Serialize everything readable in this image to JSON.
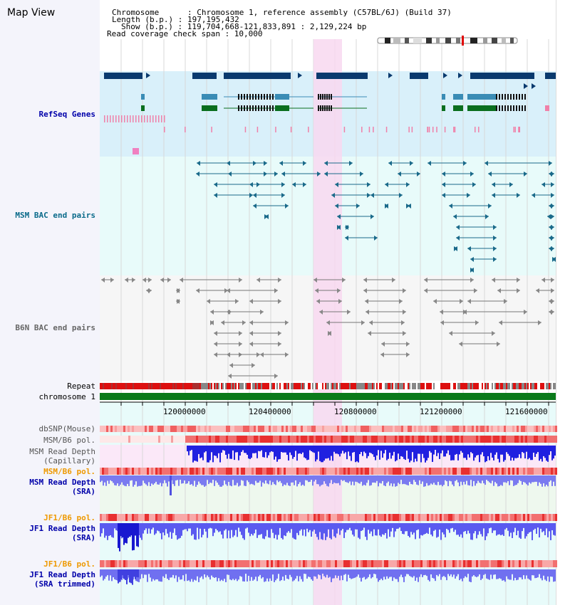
{
  "title": "Map View",
  "header": {
    "chromosome": "Chromosome      : Chromosome 1, reference assembly (C57BL/6J) (Build 37)",
    "length": "Length (b.p.) : 197,195,432",
    "show": "Show (b.p.) : 119,704,668-121,833,891 : 2,129,224 bp",
    "coverage": "Read coverage check span : 10,000"
  },
  "tracks": {
    "refseq": "RefSeq Genes",
    "msm_bac": "MSM BAC end pairs",
    "b6n_bac": "B6N BAC end pairs",
    "repeat": "Repeat",
    "chromosome": "chromosome 1",
    "dbsnp": "dbSNP(Mouse)",
    "msm_b6_pol": "MSM/B6 pol.",
    "msm_read_depth_cap_1": "MSM Read Depth",
    "msm_read_depth_cap_2": "(Capillary)",
    "msm_b6_pol2": "MSM/B6 pol.",
    "msm_read_depth_sra_1": "MSM Read Depth",
    "msm_read_depth_sra_2": "(SRA)",
    "jf1_b6_pol": "JF1/B6 pol.",
    "jf1_read_depth_sra_1": "JF1 Read Depth",
    "jf1_read_depth_sra_2": "(SRA)",
    "jf1_b6_pol2": "JF1/B6 pol.",
    "jf1_read_depth_trim_1": "JF1 Read Depth",
    "jf1_read_depth_trim_2": "(SRA trimmed)"
  },
  "axis": {
    "ticks": [
      "120000000",
      "120400000",
      "120800000",
      "121200000",
      "121600000"
    ]
  },
  "colors": {
    "refseq_bg": "#d9f0fa",
    "bac_bg": "#e8fbfa",
    "highlight": "#f8d8f0",
    "gene_dark": "#0a3a6e",
    "gene_mid": "#3a8cb5",
    "gene_green": "#0a6e1e",
    "msm_bac": "#1a6a8a",
    "b6n_bac": "#666666",
    "repeat_red": "#dd1010",
    "chromosome_green": "#0a7a1a",
    "depth_blue": "#2020e0",
    "depth_light": "#6a6af0",
    "msm_label": "#0a6a8a",
    "refseq_label": "#0000aa",
    "orange_label": "#ee9900"
  }
}
